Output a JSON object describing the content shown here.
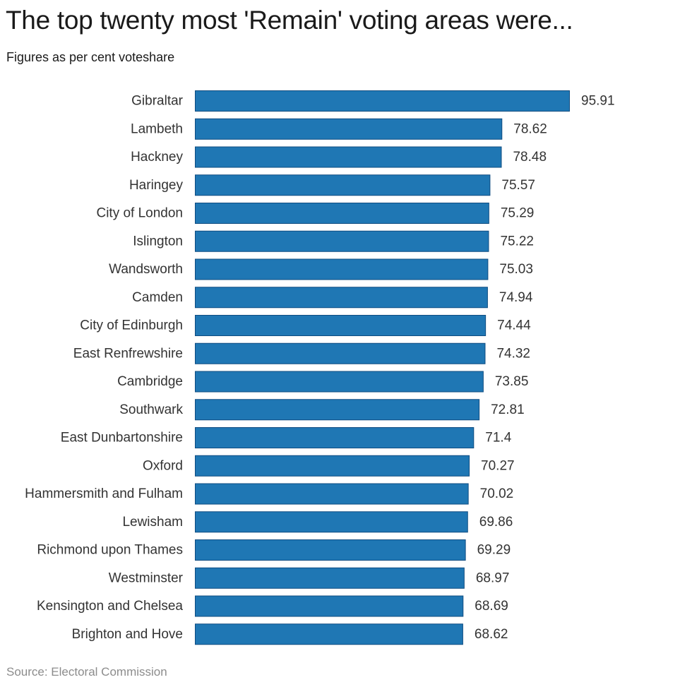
{
  "chart_data": {
    "type": "bar",
    "orientation": "horizontal",
    "title": "The top twenty most 'Remain' voting areas were...",
    "subtitle": "Figures as per cent voteshare",
    "source": "Source: Electoral Commission",
    "bar_color": "#1f77b4",
    "bar_edge_color": "#0f4c81",
    "grid": false,
    "legend": "none",
    "categories": [
      "Gibraltar",
      "Lambeth",
      "Hackney",
      "Haringey",
      "City of London",
      "Islington",
      "Wandsworth",
      "Camden",
      "City of Edinburgh",
      "East Renfrewshire",
      "Cambridge",
      "Southwark",
      "East Dunbartonshire",
      "Oxford",
      "Hammersmith and Fulham",
      "Lewisham",
      "Richmond upon Thames",
      "Westminster",
      "Kensington and Chelsea",
      "Brighton and Hove"
    ],
    "values": [
      95.91,
      78.62,
      78.48,
      75.57,
      75.29,
      75.22,
      75.03,
      74.94,
      74.44,
      74.32,
      73.85,
      72.81,
      71.4,
      70.27,
      70.02,
      69.86,
      69.29,
      68.97,
      68.69,
      68.62
    ],
    "value_labels": [
      "95.91",
      "78.62",
      "78.48",
      "75.57",
      "75.29",
      "75.22",
      "75.03",
      "74.94",
      "74.44",
      "74.32",
      "73.85",
      "72.81",
      "71.4",
      "70.27",
      "70.02",
      "69.86",
      "69.29",
      "68.97",
      "68.69",
      "68.62"
    ],
    "xlim": [
      0,
      95.91
    ]
  }
}
